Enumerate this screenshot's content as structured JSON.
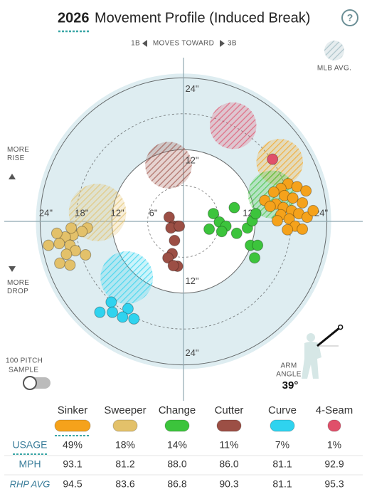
{
  "chart_data": {
    "type": "scatter",
    "title_year": "2026",
    "title": "Movement Profile (Induced Break)",
    "help": "?",
    "direction": {
      "left": "1B",
      "middle": "MOVES TOWARD",
      "right": "3B"
    },
    "legend_avg": "MLB AVG.",
    "rise": "MORE RISE",
    "drop": "MORE DROP",
    "sample": {
      "line1": "100 PITCH",
      "line2": "SAMPLE"
    },
    "arm_angle": {
      "title_line1": "ARM",
      "title_line2": "ANGLE",
      "value": 39,
      "label": "39°"
    },
    "xlim": [
      -30,
      30
    ],
    "ylim": [
      -30,
      30
    ],
    "xticks": [
      {
        "value": -24,
        "label": "24\""
      },
      {
        "value": -18,
        "label": "18\""
      },
      {
        "value": -12,
        "label": "12\""
      },
      {
        "value": -6,
        "label": "6\""
      },
      {
        "value": 12,
        "label": "12\""
      },
      {
        "value": 24,
        "label": "24\""
      }
    ],
    "yticks": [
      {
        "value": 24,
        "label": "24\""
      },
      {
        "value": 12,
        "label": "12\""
      },
      {
        "value": -12,
        "label": "12\""
      },
      {
        "value": -24,
        "label": "24\""
      }
    ],
    "series": [
      {
        "name": "Sinker",
        "color": "#f5a21b",
        "x": [
          17.5,
          19.0,
          20.5,
          16.3,
          15.1,
          16.9,
          18.3,
          19.9,
          13.6,
          15.5,
          16.7,
          18.1,
          19.3,
          20.7,
          16.3,
          17.7,
          15.7,
          18.7,
          19.9,
          17.4,
          21.7,
          14.5
        ],
        "values": [
          6.3,
          5.8,
          5.1,
          5.5,
          4.9,
          4.3,
          3.9,
          3.1,
          3.5,
          2.9,
          2.3,
          1.8,
          1.3,
          0.7,
          1.1,
          0.4,
          0.1,
          -0.8,
          -1.3,
          -1.4,
          1.8,
          2.5
        ],
        "mlb_avg": {
          "x": 16.1,
          "y": 9.9,
          "r": 3.9
        }
      },
      {
        "name": "Sweeper",
        "color": "#e3c16a",
        "x": [
          -16.1,
          -17.0,
          -18.5,
          -19.8,
          -21.2,
          -22.6,
          -20.8,
          -19.0,
          -18.1,
          -19.6,
          -16.4,
          -20.7,
          -19.0,
          -18.8
        ],
        "values": [
          -1.1,
          -1.7,
          -2.3,
          -2.6,
          -2.0,
          -4.0,
          -3.7,
          -4.0,
          -4.9,
          -5.5,
          -5.6,
          -7.0,
          -7.3,
          -1.1
        ],
        "mlb_avg": {
          "x": -14.4,
          "y": 1.5,
          "r": 4.8
        }
      },
      {
        "name": "Change",
        "color": "#3cc43c",
        "x": [
          5.0,
          8.5,
          6.0,
          7.1,
          4.3,
          8.9,
          10.7,
          11.5,
          12.1,
          11.2,
          12.4,
          11.9,
          6.4
        ],
        "values": [
          1.3,
          2.3,
          -0.1,
          -0.8,
          -1.3,
          -2.0,
          -1.1,
          0.1,
          1.3,
          -4.0,
          -4.0,
          -6.1,
          -1.7
        ],
        "mlb_avg": {
          "x": 14.8,
          "y": 4.5,
          "r": 4.0
        }
      },
      {
        "name": "Cutter",
        "color": "#9c4f45",
        "x": [
          -2.4,
          -1.7,
          -1.0,
          -2.1,
          -1.5,
          -1.9,
          -2.6,
          -1.0,
          -1.7,
          -0.7
        ],
        "values": [
          0.7,
          -0.8,
          -0.8,
          -1.1,
          -3.2,
          -5.4,
          -6.1,
          -7.5,
          -7.4,
          -0.8
        ],
        "mlb_avg": {
          "x": -2.5,
          "y": 9.4,
          "r": 3.9
        }
      },
      {
        "name": "Curve",
        "color": "#2fd3ef",
        "x": [
          -12.1,
          -14.0,
          -11.9,
          -9.3,
          -10.2,
          -8.3
        ],
        "values": [
          -13.5,
          -15.2,
          -15.2,
          -14.6,
          -16.0,
          -16.3
        ],
        "mlb_avg": {
          "x": -9.5,
          "y": -9.4,
          "r": 4.4
        }
      },
      {
        "name": "4-Seam",
        "color": "#e0506a",
        "x": [
          14.9
        ],
        "values": [
          10.4
        ],
        "mlb_avg": {
          "x": 8.3,
          "y": 16.0,
          "r": 3.9
        }
      }
    ]
  },
  "table": {
    "rows": [
      {
        "label": "USAGE",
        "cells": [
          "49%",
          "18%",
          "14%",
          "11%",
          "7%",
          "1%"
        ]
      },
      {
        "label": "MPH",
        "cells": [
          "93.1",
          "81.2",
          "88.0",
          "86.0",
          "81.1",
          "92.9"
        ]
      },
      {
        "label": "RHP AVG",
        "cells": [
          "94.5",
          "83.6",
          "86.8",
          "90.3",
          "81.1",
          "95.3"
        ]
      }
    ]
  }
}
